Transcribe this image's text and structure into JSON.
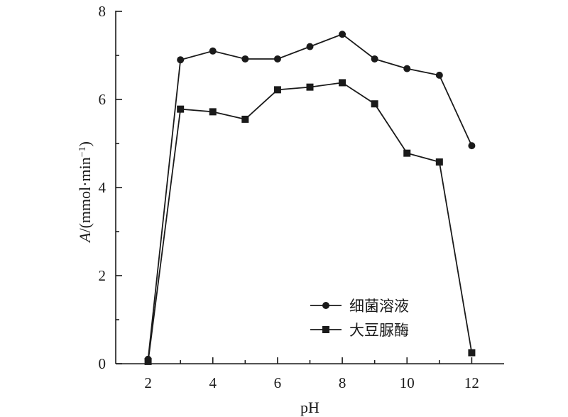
{
  "chart_data": {
    "type": "line",
    "title": "",
    "xlabel": "pH",
    "ylabel": "A/(mmol·min⁻¹)",
    "ylabel_parts": {
      "italic": "A",
      "rest": "/(mmol·min",
      "sup": "−1",
      "close": ")"
    },
    "xlim": [
      1,
      13
    ],
    "ylim": [
      0,
      8
    ],
    "xticks": [
      2,
      4,
      6,
      8,
      10,
      12
    ],
    "yticks": [
      0,
      2,
      4,
      6,
      8
    ],
    "grid": false,
    "legend_position": "bottom-right",
    "series": [
      {
        "name": "细菌溶液",
        "marker": "circle",
        "x": [
          2,
          3,
          4,
          5,
          6,
          7,
          8,
          9,
          10,
          11,
          12
        ],
        "y": [
          0.1,
          6.9,
          7.1,
          6.92,
          6.92,
          7.2,
          7.48,
          6.92,
          6.7,
          6.55,
          4.95
        ]
      },
      {
        "name": "大豆脲酶",
        "marker": "square",
        "x": [
          2,
          3,
          4,
          5,
          6,
          7,
          8,
          9,
          10,
          11,
          12
        ],
        "y": [
          0.05,
          5.78,
          5.72,
          5.55,
          6.22,
          6.28,
          6.38,
          5.9,
          4.78,
          4.58,
          0.25
        ]
      }
    ]
  }
}
